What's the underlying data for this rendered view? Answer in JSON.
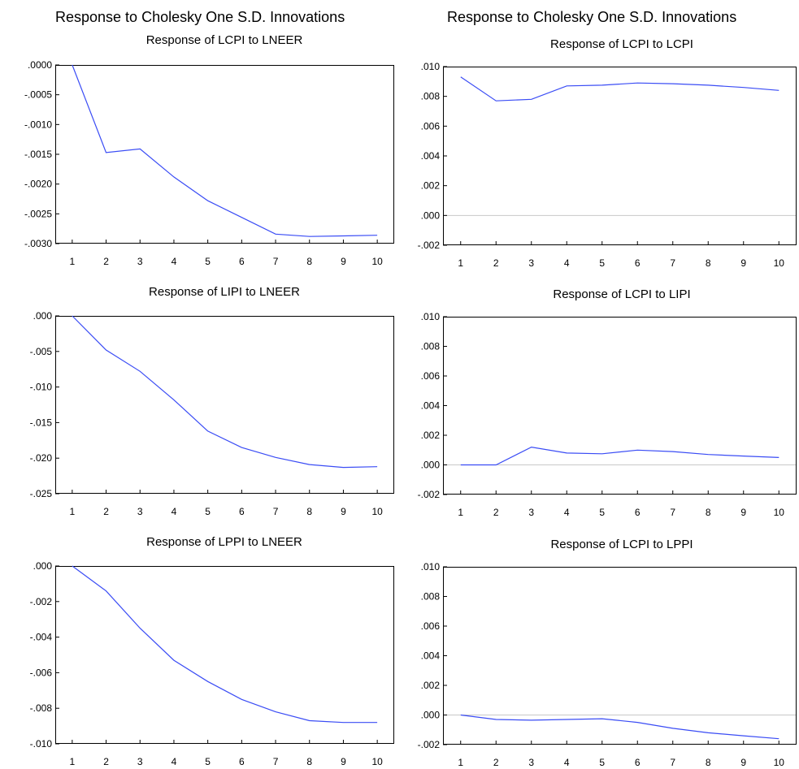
{
  "headings": {
    "left": "Response to Cholesky One S.D. Innovations",
    "right": "Response to Cholesky One S.D. Innovations"
  },
  "colors": {
    "line": "#3a4cf5",
    "zero_line": "#c8c8c8",
    "frame": "#000000"
  },
  "chart_data": [
    {
      "type": "line",
      "title": "Response of LCPI to LNEER",
      "x": [
        1,
        2,
        3,
        4,
        5,
        6,
        7,
        8,
        9,
        10
      ],
      "y": [
        0.0,
        -0.00147,
        -0.00141,
        -0.00188,
        -0.00228,
        -0.00256,
        -0.00284,
        -0.00288,
        -0.00287,
        -0.00286
      ],
      "ylim": [
        -0.003,
        0.0
      ],
      "yticks": [
        0.0,
        -0.0005,
        -0.001,
        -0.0015,
        -0.002,
        -0.0025,
        -0.003
      ],
      "ytick_labels": [
        ".0000",
        "-.0005",
        "-.0010",
        "-.0015",
        "-.0020",
        "-.0025",
        "-.0030"
      ],
      "xtick_labels": [
        "1",
        "2",
        "3",
        "4",
        "5",
        "6",
        "7",
        "8",
        "9",
        "10"
      ],
      "zero_line": false
    },
    {
      "type": "line",
      "title": "Response of LCPI to LCPI",
      "x": [
        1,
        2,
        3,
        4,
        5,
        6,
        7,
        8,
        9,
        10
      ],
      "y": [
        0.0093,
        0.0077,
        0.0078,
        0.0087,
        0.00875,
        0.0089,
        0.00885,
        0.00875,
        0.0086,
        0.0084
      ],
      "ylim": [
        -0.002,
        0.01
      ],
      "yticks": [
        0.01,
        0.008,
        0.006,
        0.004,
        0.002,
        0.0,
        -0.002
      ],
      "ytick_labels": [
        ".010",
        ".008",
        ".006",
        ".004",
        ".002",
        ".000",
        "-.002"
      ],
      "xtick_labels": [
        "1",
        "2",
        "3",
        "4",
        "5",
        "6",
        "7",
        "8",
        "9",
        "10"
      ],
      "zero_line": true
    },
    {
      "type": "line",
      "title": "Response of LIPI to LNEER",
      "x": [
        1,
        2,
        3,
        4,
        5,
        6,
        7,
        8,
        9,
        10
      ],
      "y": [
        0.0,
        -0.0048,
        -0.0078,
        -0.0118,
        -0.0162,
        -0.0185,
        -0.0199,
        -0.0209,
        -0.0213,
        -0.0212
      ],
      "ylim": [
        -0.025,
        0.0
      ],
      "yticks": [
        0.0,
        -0.005,
        -0.01,
        -0.015,
        -0.02,
        -0.025
      ],
      "ytick_labels": [
        ".000",
        "-.005",
        "-.010",
        "-.015",
        "-.020",
        "-.025"
      ],
      "xtick_labels": [
        "1",
        "2",
        "3",
        "4",
        "5",
        "6",
        "7",
        "8",
        "9",
        "10"
      ],
      "zero_line": false
    },
    {
      "type": "line",
      "title": "Response of LCPI to LIPI",
      "x": [
        1,
        2,
        3,
        4,
        5,
        6,
        7,
        8,
        9,
        10
      ],
      "y": [
        0.0,
        0.0,
        0.0012,
        0.0008,
        0.00075,
        0.001,
        0.0009,
        0.0007,
        0.0006,
        0.0005
      ],
      "ylim": [
        -0.002,
        0.01
      ],
      "yticks": [
        0.01,
        0.008,
        0.006,
        0.004,
        0.002,
        0.0,
        -0.002
      ],
      "ytick_labels": [
        ".010",
        ".008",
        ".006",
        ".004",
        ".002",
        ".000",
        "-.002"
      ],
      "xtick_labels": [
        "1",
        "2",
        "3",
        "4",
        "5",
        "6",
        "7",
        "8",
        "9",
        "10"
      ],
      "zero_line": true
    },
    {
      "type": "line",
      "title": "Response of LPPI to LNEER",
      "x": [
        1,
        2,
        3,
        4,
        5,
        6,
        7,
        8,
        9,
        10
      ],
      "y": [
        0.0,
        -0.0014,
        -0.0035,
        -0.0053,
        -0.0065,
        -0.0075,
        -0.0082,
        -0.0087,
        -0.0088,
        -0.0088
      ],
      "ylim": [
        -0.01,
        0.0
      ],
      "yticks": [
        0.0,
        -0.002,
        -0.004,
        -0.006,
        -0.008,
        -0.01
      ],
      "ytick_labels": [
        ".000",
        "-.002",
        "-.004",
        "-.006",
        "-.008",
        "-.010"
      ],
      "xtick_labels": [
        "1",
        "2",
        "3",
        "4",
        "5",
        "6",
        "7",
        "8",
        "9",
        "10"
      ],
      "zero_line": false
    },
    {
      "type": "line",
      "title": "Response of LCPI to LPPI",
      "x": [
        1,
        2,
        3,
        4,
        5,
        6,
        7,
        8,
        9,
        10
      ],
      "y": [
        0.0,
        -0.0003,
        -0.00035,
        -0.0003,
        -0.00025,
        -0.0005,
        -0.0009,
        -0.0012,
        -0.0014,
        -0.0016
      ],
      "ylim": [
        -0.002,
        0.01
      ],
      "yticks": [
        0.01,
        0.008,
        0.006,
        0.004,
        0.002,
        0.0,
        -0.002
      ],
      "ytick_labels": [
        ".010",
        ".008",
        ".006",
        ".004",
        ".002",
        ".000",
        "-.002"
      ],
      "xtick_labels": [
        "1",
        "2",
        "3",
        "4",
        "5",
        "6",
        "7",
        "8",
        "9",
        "10"
      ],
      "zero_line": true
    }
  ]
}
